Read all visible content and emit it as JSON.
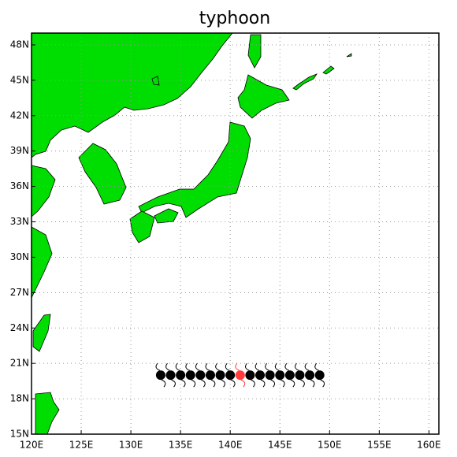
{
  "chart_data": {
    "type": "scatter",
    "title": "typhoon",
    "x": [
      133,
      134,
      135,
      136,
      137,
      138,
      139,
      140,
      141,
      142,
      143,
      144,
      145,
      146,
      147,
      148,
      149
    ],
    "values": [
      20,
      20,
      20,
      20,
      20,
      20,
      20,
      20,
      20,
      20,
      20,
      20,
      20,
      20,
      20,
      20,
      20
    ],
    "colors": [
      "#000000",
      "#000000",
      "#000000",
      "#000000",
      "#000000",
      "#000000",
      "#000000",
      "#000000",
      "#ff3b3b",
      "#000000",
      "#000000",
      "#000000",
      "#000000",
      "#000000",
      "#000000",
      "#000000",
      "#000000"
    ],
    "xlim": [
      120,
      161
    ],
    "ylim": [
      15,
      49
    ],
    "xticks": [
      {
        "value": 120,
        "label": "120E"
      },
      {
        "value": 125,
        "label": "125E"
      },
      {
        "value": 130,
        "label": "130E"
      },
      {
        "value": 135,
        "label": "135E"
      },
      {
        "value": 140,
        "label": "140E"
      },
      {
        "value": 145,
        "label": "145E"
      },
      {
        "value": 150,
        "label": "150E"
      },
      {
        "value": 155,
        "label": "155E"
      },
      {
        "value": 160,
        "label": "160E"
      }
    ],
    "yticks": [
      {
        "value": 15,
        "label": "15N"
      },
      {
        "value": 18,
        "label": "18N"
      },
      {
        "value": 21,
        "label": "21N"
      },
      {
        "value": 24,
        "label": "24N"
      },
      {
        "value": 27,
        "label": "27N"
      },
      {
        "value": 30,
        "label": "30N"
      },
      {
        "value": 33,
        "label": "33N"
      },
      {
        "value": 36,
        "label": "36N"
      },
      {
        "value": 39,
        "label": "39N"
      },
      {
        "value": 42,
        "label": "42N"
      },
      {
        "value": 45,
        "label": "45N"
      },
      {
        "value": 48,
        "label": "48N"
      }
    ],
    "grid": true
  }
}
